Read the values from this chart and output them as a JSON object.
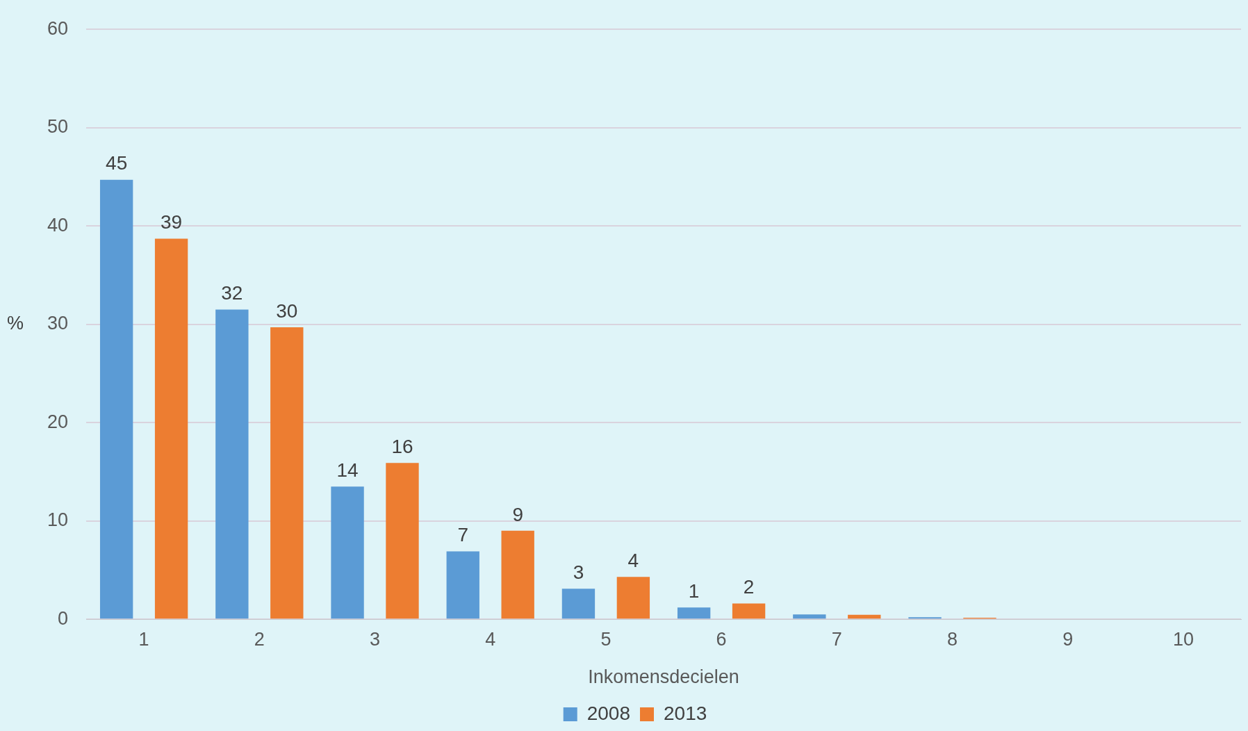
{
  "chart_data": {
    "type": "bar",
    "xlabel": "Inkomensdecielen",
    "ylabel": "%",
    "categories": [
      "1",
      "2",
      "3",
      "4",
      "5",
      "6",
      "7",
      "8",
      "9",
      "10"
    ],
    "series": [
      {
        "name": "2008",
        "color": "#5b9bd5",
        "values": [
          44.7,
          31.5,
          13.5,
          6.9,
          3.1,
          1.2,
          0.5,
          0.2,
          0,
          0
        ],
        "value_labels": [
          "45",
          "32",
          "14",
          "7",
          "3",
          "1",
          null,
          null,
          null,
          null
        ]
      },
      {
        "name": "2013",
        "color": "#ed7d31",
        "values": [
          38.7,
          29.7,
          15.9,
          9.0,
          4.3,
          1.6,
          0.45,
          0.15,
          0,
          0
        ],
        "value_labels": [
          "39",
          "30",
          "16",
          "9",
          "4",
          "2",
          null,
          null,
          null,
          null
        ]
      }
    ],
    "ylim": [
      0,
      60
    ],
    "yticks": [
      0,
      10,
      20,
      30,
      40,
      50,
      60
    ],
    "grid": "y",
    "legend": "bottom"
  }
}
